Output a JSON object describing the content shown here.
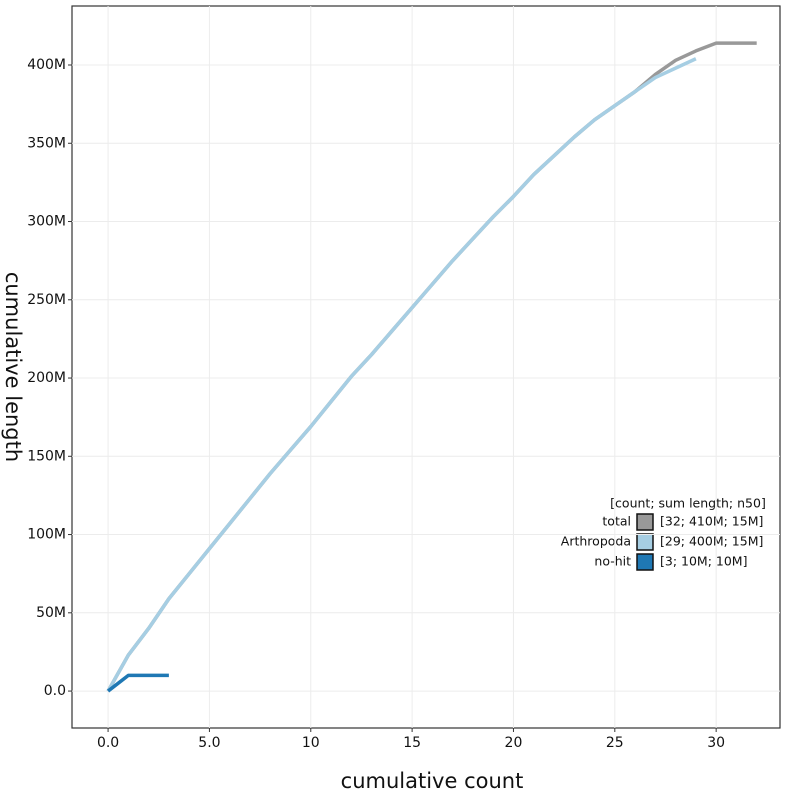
{
  "chart_data": {
    "type": "line",
    "x_label": "cumulative count",
    "y_label": "cumulative length",
    "xlim": [
      -1.78,
      33.15
    ],
    "ylim": [
      -23600000,
      437700000
    ],
    "xticks": [
      {
        "value": 0,
        "label": "0.0"
      },
      {
        "value": 5,
        "label": "5.0"
      },
      10,
      15,
      20,
      25,
      30
    ],
    "yticks": [
      {
        "value": 0,
        "label": "0.0"
      },
      {
        "value": 50000000,
        "label": "50M"
      },
      {
        "value": 100000000,
        "label": "100M"
      },
      {
        "value": 150000000,
        "label": "150M"
      },
      {
        "value": 200000000,
        "label": "200M"
      },
      {
        "value": 250000000,
        "label": "250M"
      },
      {
        "value": 300000000,
        "label": "300M"
      },
      {
        "value": 350000000,
        "label": "350M"
      },
      {
        "value": 400000000,
        "label": "400M"
      }
    ],
    "grid": true,
    "legend_title": "[count; sum length; n50]",
    "series": [
      {
        "name": "total",
        "summary": "[32; 410M; 15M]",
        "color": "#999999",
        "x": [
          0,
          1,
          2,
          3,
          4,
          5,
          6,
          7,
          8,
          9,
          10,
          11,
          12,
          13,
          14,
          15,
          16,
          17,
          18,
          19,
          20,
          21,
          22,
          23,
          24,
          25,
          26,
          27,
          28,
          29,
          30,
          31,
          32
        ],
        "values": [
          0,
          23000000,
          40000000,
          59000000,
          75000000,
          91000000,
          107000000,
          123000000,
          139000000,
          154000000,
          169000000,
          185000000,
          201000000,
          215000000,
          230000000,
          245000000,
          260000000,
          275000000,
          289000000,
          303000000,
          316000000,
          330000000,
          342000000,
          354000000,
          365000000,
          374000000,
          383000000,
          394000000,
          403000000,
          409000000,
          414000000,
          414000000,
          414000000
        ]
      },
      {
        "name": "Arthropoda",
        "summary": "[29; 400M; 15M]",
        "color": "#a6cee3",
        "x": [
          0,
          1,
          2,
          3,
          4,
          5,
          6,
          7,
          8,
          9,
          10,
          11,
          12,
          13,
          14,
          15,
          16,
          17,
          18,
          19,
          20,
          21,
          22,
          23,
          24,
          25,
          26,
          27,
          28,
          29
        ],
        "values": [
          0,
          23000000,
          40000000,
          59000000,
          75000000,
          91000000,
          107000000,
          123000000,
          139000000,
          154000000,
          169000000,
          185000000,
          201000000,
          215000000,
          230000000,
          245000000,
          260000000,
          275000000,
          289000000,
          303000000,
          316000000,
          330000000,
          342000000,
          354000000,
          365000000,
          374000000,
          383000000,
          392000000,
          398000000,
          404000000
        ]
      },
      {
        "name": "no-hit",
        "summary": "[3; 10M; 10M]",
        "color": "#1f78b4",
        "x": [
          0,
          1,
          2,
          3
        ],
        "values": [
          0,
          10000000,
          10000000,
          10000000
        ]
      }
    ]
  }
}
